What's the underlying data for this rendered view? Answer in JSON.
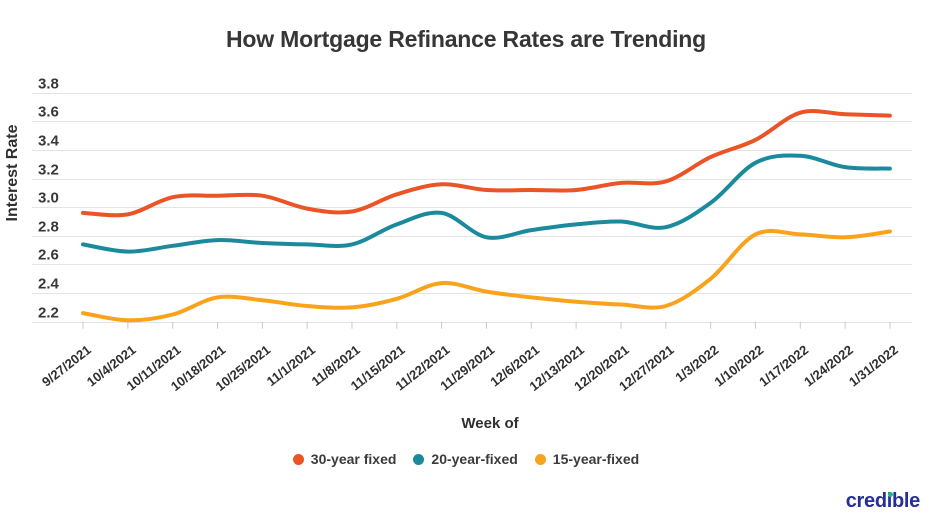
{
  "title": "How Mortgage Refinance Rates are Trending",
  "footer": {
    "logo_text": "credible"
  },
  "chart_data": {
    "type": "line",
    "title": "How Mortgage Refinance Rates are Trending",
    "xlabel": "Week of",
    "ylabel": "Interest Rate",
    "ylim": [
      2.2,
      3.8
    ],
    "ytick_step": 0.2,
    "grid": true,
    "legend_position": "bottom",
    "x": [
      "9/27/2021",
      "10/4/2021",
      "10/11/2021",
      "10/18/2021",
      "10/25/2021",
      "11/1/2021",
      "11/8/2021",
      "11/15/2021",
      "11/22/2021",
      "11/29/2021",
      "12/6/2021",
      "12/13/2021",
      "12/20/2021",
      "12/27/2021",
      "1/3/2022",
      "1/10/2022",
      "1/17/2022",
      "1/24/2022",
      "1/31/2022"
    ],
    "series": [
      {
        "name": "30-year fixed",
        "color": "#ea5426",
        "values": [
          2.96,
          2.95,
          3.07,
          3.08,
          3.08,
          2.99,
          2.97,
          3.09,
          3.16,
          3.12,
          3.12,
          3.12,
          3.17,
          3.18,
          3.35,
          3.47,
          3.66,
          3.65,
          3.64
        ]
      },
      {
        "name": "20-year-fixed",
        "color": "#1b8a9c",
        "values": [
          2.74,
          2.69,
          2.73,
          2.77,
          2.75,
          2.74,
          2.74,
          2.88,
          2.96,
          2.79,
          2.84,
          2.88,
          2.9,
          2.86,
          3.03,
          3.31,
          3.36,
          3.28,
          3.27
        ]
      },
      {
        "name": "15-year-fixed",
        "color": "#f9a21c",
        "values": [
          2.26,
          2.21,
          2.25,
          2.37,
          2.35,
          2.31,
          2.3,
          2.36,
          2.47,
          2.41,
          2.37,
          2.34,
          2.32,
          2.31,
          2.5,
          2.81,
          2.81,
          2.79,
          2.83
        ]
      }
    ]
  }
}
